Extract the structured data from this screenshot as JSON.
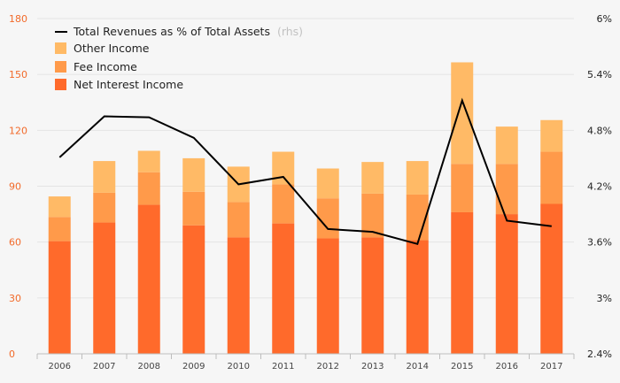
{
  "chart_data": {
    "type": "bar",
    "stacked": true,
    "categories": [
      "2006",
      "2007",
      "2008",
      "2009",
      "2010",
      "2011",
      "2012",
      "2013",
      "2014",
      "2015",
      "2016",
      "2017"
    ],
    "series": [
      {
        "name": "Net Interest Income",
        "color": "#ff6a2b",
        "values": [
          60.5,
          70.5,
          80,
          69,
          62.5,
          70,
          62,
          62.5,
          61,
          76,
          75,
          80.5
        ]
      },
      {
        "name": "Fee Income",
        "color": "#ff9a4a",
        "values": [
          13,
          16,
          17.5,
          18,
          19,
          21,
          21.5,
          23.5,
          24.5,
          26,
          27,
          28
        ]
      },
      {
        "name": "Other Income",
        "color": "#ffba66",
        "values": [
          11,
          17,
          11.5,
          18,
          19,
          17.5,
          16,
          17,
          18,
          54.5,
          20,
          17
        ]
      }
    ],
    "line": {
      "name": "Total Revenues as % of Total Assets",
      "name_suffix": "(rhs)",
      "axis": "right",
      "color": "#000000",
      "values": [
        4.51,
        4.95,
        4.94,
        4.72,
        4.22,
        4.3,
        3.74,
        3.71,
        3.58,
        5.12,
        3.83,
        3.77
      ]
    },
    "left_axis": {
      "ylim": [
        0,
        180
      ],
      "ticks": [
        "0",
        "30",
        "60",
        "90",
        "120",
        "150",
        "180"
      ],
      "color": "#f26a2a"
    },
    "right_axis": {
      "ylim": [
        2.4,
        6.0
      ],
      "ticks": [
        "2.4%",
        "3%",
        "3.6%",
        "4.2%",
        "4.8%",
        "5.4%",
        "6%"
      ]
    },
    "legend_placement": "top-left",
    "grid": true
  }
}
